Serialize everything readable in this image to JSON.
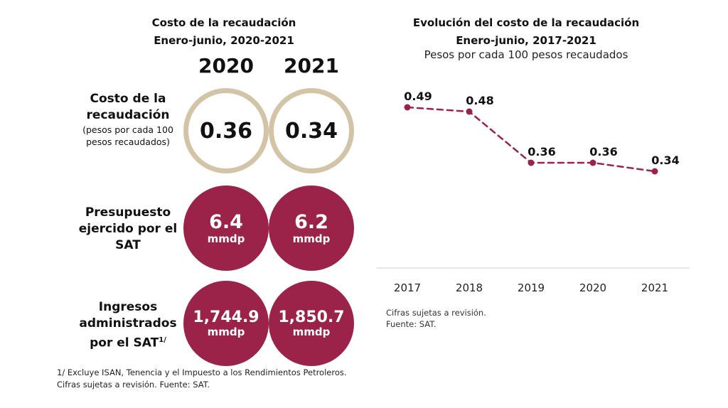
{
  "left_panel": {
    "title_line1": "Costo de la recaudación",
    "title_line2": "Enero-junio, 2020-2021",
    "years": [
      "2020",
      "2021"
    ],
    "rows": [
      {
        "label_line1": "Costo de la",
        "label_line2": "recaudación",
        "sub_line1": "(pesos por cada 100",
        "sub_line2": "pesos recaudados)",
        "values": [
          "0.36",
          "0.34"
        ]
      },
      {
        "label_line1": "Presupuesto",
        "label_line2": "ejercido por el",
        "label_line3": "SAT",
        "values": [
          "6.4",
          "6.2"
        ],
        "unit": "mmdp"
      },
      {
        "label_line1": "Ingresos",
        "label_line2": "administrados",
        "label_line3": "por el SAT",
        "label_sup": "1/",
        "values": [
          "1,744.9",
          "1,850.7"
        ],
        "unit": "mmdp"
      }
    ],
    "footnote_line1": "1/ Excluye ISAN, Tenencia y el Impuesto a los Rendimientos Petroleros.",
    "footnote_line2": "Cifras sujetas a revisión. Fuente: SAT."
  },
  "colors": {
    "accent": "#9b2248",
    "ring": "#d3c4a8",
    "axis": "#cccccc"
  },
  "chart_data": {
    "type": "line",
    "title": "Evolución del costo de la recaudación",
    "subtitle": "Enero-junio, 2017-2021",
    "unit_note": "Pesos por cada 100 pesos recaudados",
    "categories": [
      "2017",
      "2018",
      "2019",
      "2020",
      "2021"
    ],
    "values": [
      0.49,
      0.48,
      0.36,
      0.36,
      0.34
    ],
    "data_labels": [
      "0.49",
      "0.48",
      "0.36",
      "0.36",
      "0.34"
    ],
    "line_style": "dashed",
    "grid": false,
    "note_line1": "Cifras sujetas a revisión.",
    "note_line2": "Fuente: SAT."
  }
}
